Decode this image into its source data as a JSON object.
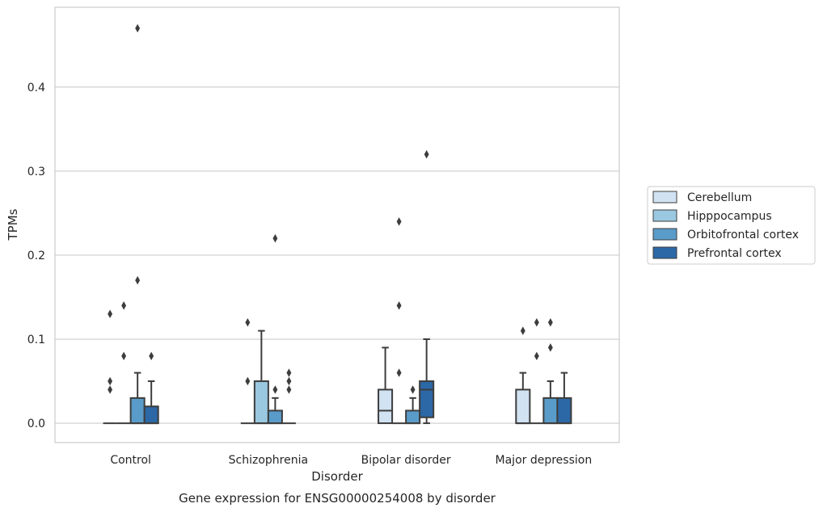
{
  "chart_data": {
    "type": "box",
    "title": "Gene expression for ENSG00000254008 by disorder",
    "xlabel": "Disorder",
    "ylabel": "TPMs",
    "ylim": [
      -0.023,
      0.495
    ],
    "yticks": [
      0.0,
      0.1,
      0.2,
      0.3,
      0.4
    ],
    "ytick_labels": [
      "0.0",
      "0.1",
      "0.2",
      "0.3",
      "0.4"
    ],
    "grid": "horizontal",
    "legend_position": "right",
    "categories": [
      "Control",
      "Schizophrenia",
      "Bipolar disorder",
      "Major depression"
    ],
    "series": [
      {
        "name": "Cerebellum",
        "color": "#d1e2f2",
        "boxes": [
          {
            "q1": 0,
            "median": 0,
            "q3": 0,
            "whislo": 0,
            "whishi": 0,
            "fliers": [
              0.13,
              0.05,
              0.04
            ]
          },
          {
            "q1": 0,
            "median": 0,
            "q3": 0,
            "whislo": 0,
            "whishi": 0,
            "fliers": [
              0.12,
              0.05
            ]
          },
          {
            "q1": 0,
            "median": 0.015,
            "q3": 0.04,
            "whislo": 0,
            "whishi": 0.09,
            "fliers": []
          },
          {
            "q1": 0,
            "median": 0,
            "q3": 0.04,
            "whislo": 0,
            "whishi": 0.06,
            "fliers": [
              0.11
            ]
          }
        ]
      },
      {
        "name": "Hipppocampus",
        "color": "#9ac8e0",
        "boxes": [
          {
            "q1": 0,
            "median": 0,
            "q3": 0,
            "whislo": 0,
            "whishi": 0,
            "fliers": [
              0.14,
              0.08
            ]
          },
          {
            "q1": 0,
            "median": 0,
            "q3": 0.05,
            "whislo": 0,
            "whishi": 0.11,
            "fliers": []
          },
          {
            "q1": 0,
            "median": 0,
            "q3": 0,
            "whislo": 0,
            "whishi": 0,
            "fliers": [
              0.24,
              0.14,
              0.06
            ]
          },
          {
            "q1": 0,
            "median": 0,
            "q3": 0,
            "whislo": 0,
            "whishi": 0,
            "fliers": [
              0.12,
              0.08
            ]
          }
        ]
      },
      {
        "name": "Orbitofrontal cortex",
        "color": "#5a9cc9",
        "boxes": [
          {
            "q1": 0,
            "median": 0,
            "q3": 0.03,
            "whislo": 0,
            "whishi": 0.06,
            "fliers": [
              0.47,
              0.17
            ]
          },
          {
            "q1": 0,
            "median": 0,
            "q3": 0.015,
            "whislo": 0,
            "whishi": 0.03,
            "fliers": [
              0.22,
              0.04
            ]
          },
          {
            "q1": 0,
            "median": 0,
            "q3": 0.015,
            "whislo": 0,
            "whishi": 0.03,
            "fliers": [
              0.04
            ]
          },
          {
            "q1": 0,
            "median": 0,
            "q3": 0.03,
            "whislo": 0,
            "whishi": 0.05,
            "fliers": [
              0.12,
              0.09
            ]
          }
        ]
      },
      {
        "name": "Prefrontal cortex",
        "color": "#2c68a6",
        "boxes": [
          {
            "q1": 0,
            "median": 0,
            "q3": 0.02,
            "whislo": 0,
            "whishi": 0.05,
            "fliers": [
              0.08
            ]
          },
          {
            "q1": 0,
            "median": 0,
            "q3": 0,
            "whislo": 0,
            "whishi": 0,
            "fliers": [
              0.06,
              0.05,
              0.04
            ]
          },
          {
            "q1": 0.007,
            "median": 0.04,
            "q3": 0.05,
            "whislo": 0,
            "whishi": 0.1,
            "fliers": [
              0.32
            ]
          },
          {
            "q1": 0,
            "median": 0,
            "q3": 0.03,
            "whislo": 0,
            "whishi": 0.06,
            "fliers": []
          }
        ]
      }
    ]
  }
}
